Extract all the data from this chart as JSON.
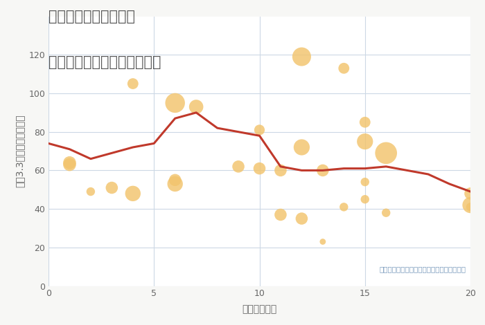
{
  "title_line1": "愛知県稲沢市平和町の",
  "title_line2": "駅距離別中古マンション価格",
  "xlabel": "駅距離（分）",
  "ylabel": "坪（3.3㎡）単価（万円）",
  "background_color": "#f7f7f5",
  "plot_bg_color": "#ffffff",
  "grid_color": "#ccd8e5",
  "note": "円の大きさは、取引のあった物件面積を示す",
  "scatter_color": "#f2c46d",
  "scatter_alpha": 0.82,
  "line_color": "#c0392b",
  "line_width": 2.2,
  "xlim": [
    0,
    20
  ],
  "ylim": [
    0,
    140
  ],
  "yticks": [
    0,
    20,
    40,
    60,
    80,
    100,
    120
  ],
  "xticks": [
    0,
    5,
    10,
    15,
    20
  ],
  "scatter_x": [
    1,
    1,
    2,
    3,
    4,
    4,
    6,
    6,
    6,
    7,
    9,
    10,
    10,
    11,
    11,
    12,
    12,
    12,
    13,
    13,
    14,
    14,
    15,
    15,
    15,
    15,
    16,
    16,
    20,
    20,
    20
  ],
  "scatter_y": [
    63,
    64,
    49,
    51,
    48,
    105,
    55,
    53,
    95,
    93,
    62,
    61,
    81,
    60,
    37,
    119,
    72,
    35,
    60,
    23,
    113,
    41,
    75,
    54,
    45,
    85,
    69,
    38,
    48,
    42,
    41
  ],
  "scatter_size": [
    180,
    180,
    80,
    160,
    260,
    130,
    160,
    260,
    420,
    220,
    160,
    160,
    120,
    160,
    160,
    380,
    280,
    160,
    160,
    40,
    130,
    80,
    280,
    80,
    80,
    130,
    520,
    80,
    160,
    280,
    80
  ],
  "line_x": [
    0,
    1,
    2,
    3,
    4,
    5,
    6,
    7,
    8,
    9,
    10,
    11,
    12,
    13,
    14,
    15,
    16,
    17,
    18,
    19,
    20
  ],
  "line_y": [
    74,
    71,
    66,
    69,
    72,
    74,
    87,
    90,
    82,
    80,
    78,
    62,
    60,
    60,
    61,
    61,
    62,
    60,
    58,
    53,
    49
  ],
  "title_color": "#555555",
  "tick_color": "#666666",
  "note_color": "#7799bb",
  "title_fontsize": 15,
  "axis_label_fontsize": 10,
  "tick_fontsize": 9
}
